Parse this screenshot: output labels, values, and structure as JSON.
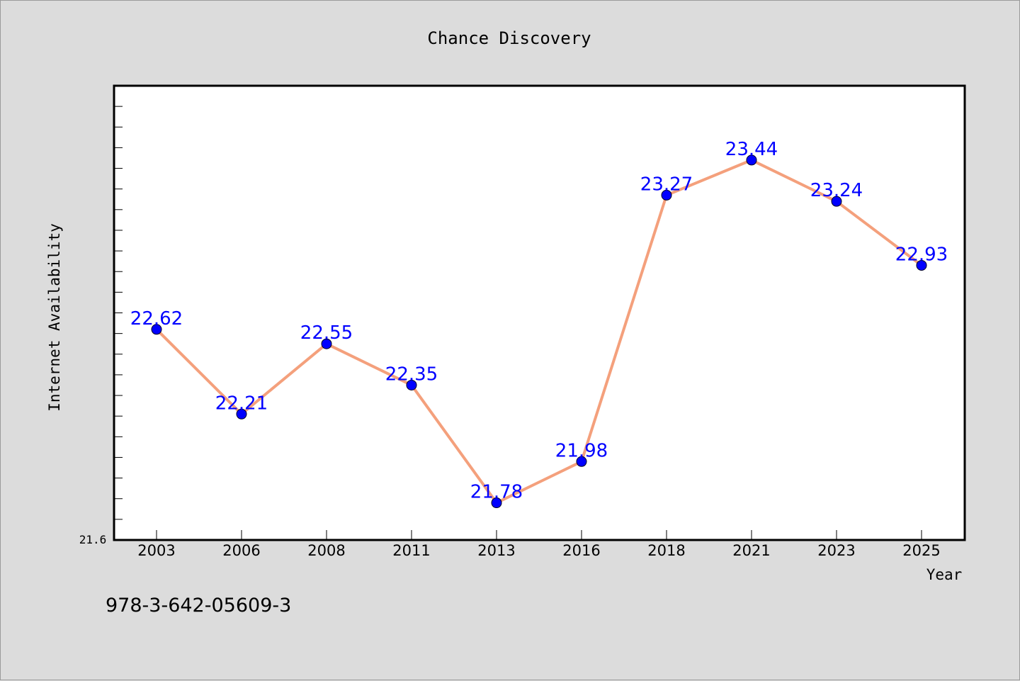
{
  "chart_data": {
    "type": "line",
    "title": "Chance Discovery",
    "xlabel": "Year",
    "ylabel": "Internet Availability",
    "categories": [
      "2003",
      "2006",
      "2008",
      "2011",
      "2013",
      "2016",
      "2018",
      "2021",
      "2023",
      "2025"
    ],
    "series": [
      {
        "values": [
          22.62,
          22.21,
          22.55,
          22.35,
          21.78,
          21.98,
          23.27,
          23.44,
          23.24,
          22.93
        ],
        "data_labels": [
          "22.62",
          "22.21",
          "22.55",
          "22.35",
          "21.78",
          "21.98",
          "23.27",
          "23.44",
          "23.24",
          "22.93"
        ]
      }
    ],
    "ylim": [
      21.6,
      23.8
    ],
    "ytick_label": "21.6",
    "grid": false,
    "legend": "none",
    "colors": {
      "line": "#f4a07c",
      "marker": "#0000ff",
      "label": "#0000ff",
      "background": "#dcdcdc",
      "plot_background": "#ffffff"
    }
  },
  "footer": {
    "isbn": "978-3-642-05609-3"
  }
}
